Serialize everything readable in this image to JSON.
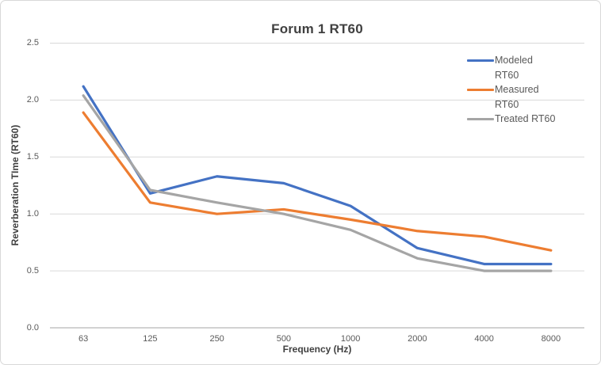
{
  "chart_data": {
    "type": "line",
    "title": "Forum 1 RT60",
    "xlabel": "Frequency (Hz)",
    "ylabel": "Reverberation TIme (RT60)",
    "categories": [
      "63",
      "125",
      "250",
      "500",
      "1000",
      "2000",
      "4000",
      "8000"
    ],
    "y_ticks": [
      "0.0",
      "0.5",
      "1.0",
      "1.5",
      "2.0",
      "2.5"
    ],
    "ylim": [
      0,
      2.5
    ],
    "grid": "horizontal",
    "legend_position": "top-right-overlay",
    "series": [
      {
        "name": "Modeled RT60",
        "color": "#4472C4",
        "values": [
          2.12,
          1.18,
          1.33,
          1.27,
          1.07,
          0.7,
          0.56,
          0.56
        ]
      },
      {
        "name": "Measured RT60",
        "color": "#ED7D31",
        "values": [
          1.89,
          1.1,
          1.0,
          1.04,
          0.95,
          0.85,
          0.8,
          0.68
        ]
      },
      {
        "name": "Treated RT60",
        "color": "#A5A5A5",
        "values": [
          2.04,
          1.21,
          1.1,
          1.0,
          0.86,
          0.61,
          0.5,
          0.5
        ]
      }
    ],
    "colors": {
      "gridline": "#D9D9D9",
      "axis_line": "#A6A6A6",
      "title_text": "#404040",
      "tick_text": "#595959",
      "legend_text": "#595959",
      "chart_border": "#D8D8D8",
      "background": "#FFFFFF"
    }
  }
}
